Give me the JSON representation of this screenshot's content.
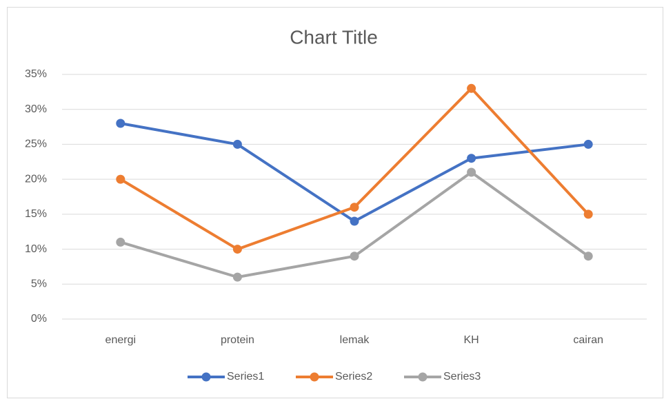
{
  "chart_data": {
    "type": "line",
    "title": "Chart Title",
    "categories": [
      "energi",
      "protein",
      "lemak",
      "KH",
      "cairan"
    ],
    "series": [
      {
        "name": "Series1",
        "color": "#4472c4",
        "values": [
          28,
          25,
          14,
          23,
          25
        ]
      },
      {
        "name": "Series2",
        "color": "#ed7d31",
        "values": [
          20,
          10,
          16,
          33,
          15
        ]
      },
      {
        "name": "Series3",
        "color": "#a5a5a5",
        "values": [
          11,
          6,
          9,
          21,
          9
        ]
      }
    ],
    "ylim": [
      0,
      35
    ],
    "yticks": [
      {
        "value": 0,
        "label": "0%"
      },
      {
        "value": 5,
        "label": "5%"
      },
      {
        "value": 10,
        "label": "10%"
      },
      {
        "value": 15,
        "label": "15%"
      },
      {
        "value": 20,
        "label": "20%"
      },
      {
        "value": 25,
        "label": "25%"
      },
      {
        "value": 30,
        "label": "30%"
      },
      {
        "value": 35,
        "label": "35%"
      }
    ],
    "grid": true,
    "legend": "bottom"
  }
}
